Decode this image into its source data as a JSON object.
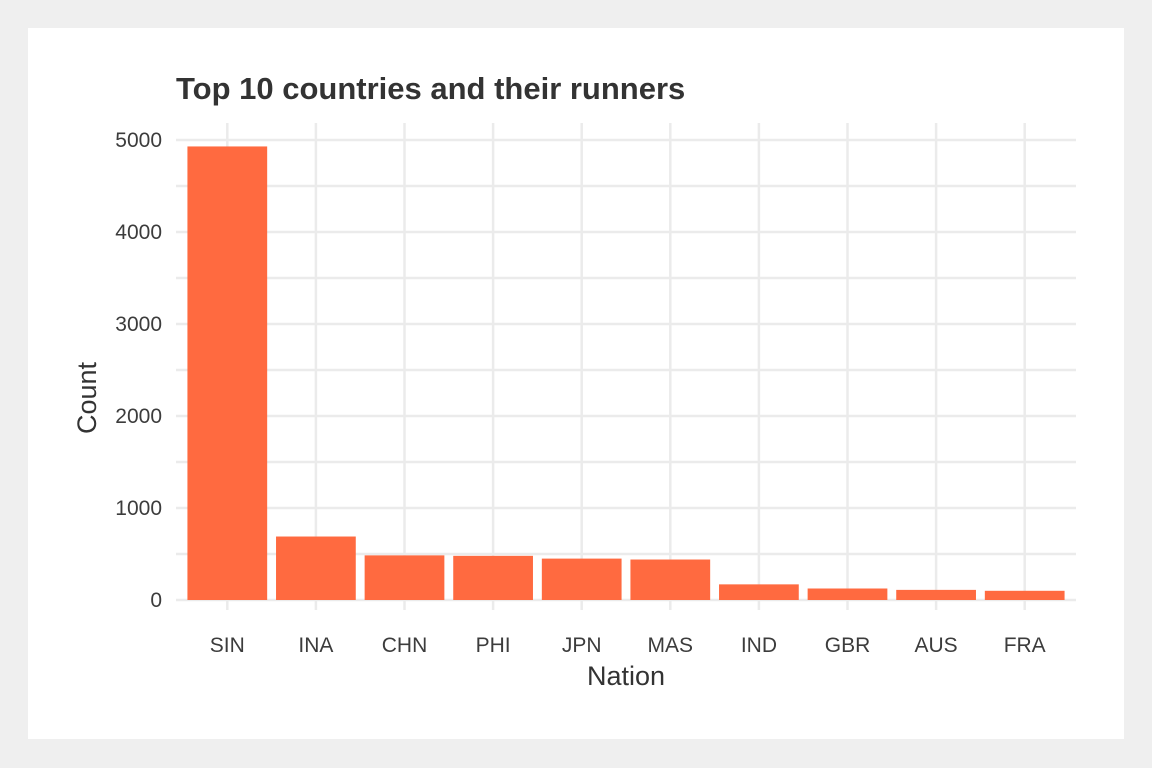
{
  "chart_data": {
    "type": "bar",
    "title": "Top 10 countries and their runners",
    "xlabel": "Nation",
    "ylabel": "Count",
    "categories": [
      "SIN",
      "INA",
      "CHN",
      "PHI",
      "JPN",
      "MAS",
      "IND",
      "GBR",
      "AUS",
      "FRA"
    ],
    "values": [
      4930,
      690,
      485,
      480,
      450,
      440,
      170,
      125,
      110,
      100
    ],
    "ylim": [
      0,
      5000
    ],
    "yticks": [
      0,
      1000,
      2000,
      3000,
      4000,
      5000
    ],
    "bar_color": "#ff6a40",
    "grid": true,
    "legend": "none"
  }
}
